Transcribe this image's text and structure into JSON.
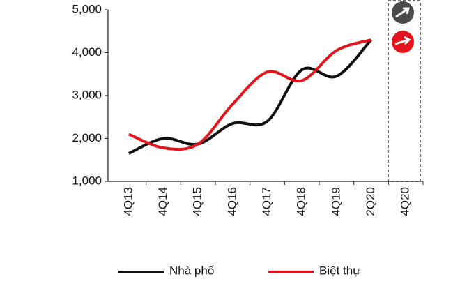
{
  "chart_data": {
    "type": "line",
    "categories": [
      "4Q13",
      "4Q14",
      "4Q15",
      "4Q16",
      "4Q17",
      "4Q18",
      "4Q19",
      "2Q20",
      "4Q20"
    ],
    "series": [
      {
        "name": "Nhà phố",
        "color": "#111111",
        "values": [
          1650,
          2000,
          1870,
          2350,
          2400,
          3600,
          3450,
          4300,
          null
        ]
      },
      {
        "name": "Biệt thự",
        "color": "#e3141b",
        "values": [
          2100,
          1780,
          1870,
          2800,
          3550,
          3350,
          4050,
          4300,
          null
        ]
      }
    ],
    "ylim": [
      1000,
      5000
    ],
    "yticks": [
      {
        "value": 1000,
        "label": "1,000"
      },
      {
        "value": 2000,
        "label": "2,000"
      },
      {
        "value": 3000,
        "label": "3,000"
      },
      {
        "value": 4000,
        "label": "4,000"
      },
      {
        "value": 5000,
        "label": "5,000"
      }
    ],
    "grid": false,
    "legend": "bottom"
  }
}
